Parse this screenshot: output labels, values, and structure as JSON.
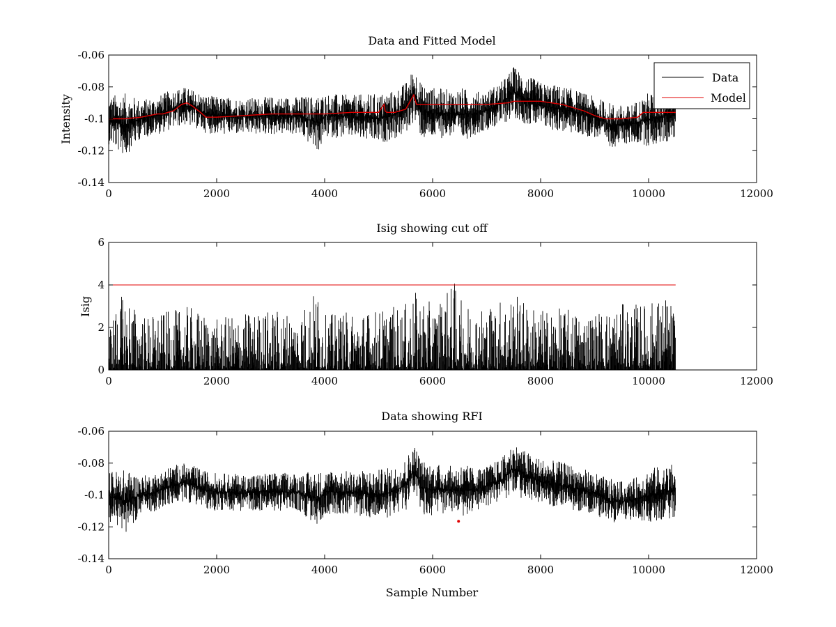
{
  "figure": {
    "background": "#ffffff"
  },
  "chart_data": [
    {
      "type": "line",
      "title": "Data and Fitted Model",
      "xlabel": "",
      "ylabel": "Intensity",
      "xlim": [
        0,
        12000
      ],
      "ylim": [
        -0.14,
        -0.06
      ],
      "y_reversed": true,
      "xticks": [
        0,
        2000,
        4000,
        6000,
        8000,
        10000,
        12000
      ],
      "xtick_labels": [
        "0",
        "2000",
        "4000",
        "6000",
        "8000",
        "10000",
        "12000"
      ],
      "yticks": [
        -0.06,
        -0.08,
        -0.1,
        -0.12,
        -0.14
      ],
      "ytick_labels": [
        "-0.06",
        "-0.08",
        "-0.1",
        "-0.12",
        "-0.14"
      ],
      "grid": false,
      "legend": {
        "placement": "top-right",
        "entries": [
          "Data",
          "Model"
        ]
      },
      "series": [
        {
          "name": "Data",
          "kind": "noise-envelope",
          "color": "#000000",
          "x": [
            0,
            300,
            600,
            900,
            1200,
            1400,
            1600,
            1800,
            2000,
            2500,
            3000,
            3500,
            3900,
            4000,
            4500,
            5000,
            5300,
            5500,
            5650,
            5700,
            5800,
            6000,
            6400,
            6500,
            6800,
            7000,
            7300,
            7500,
            7700,
            8000,
            8500,
            9000,
            9300,
            9600,
            9900,
            10000,
            10200,
            10500
          ],
          "upper": [
            -0.085,
            -0.084,
            -0.088,
            -0.086,
            -0.081,
            -0.08,
            -0.082,
            -0.085,
            -0.086,
            -0.087,
            -0.086,
            -0.086,
            -0.085,
            -0.084,
            -0.085,
            -0.084,
            -0.082,
            -0.077,
            -0.068,
            -0.07,
            -0.078,
            -0.08,
            -0.082,
            -0.08,
            -0.083,
            -0.082,
            -0.076,
            -0.067,
            -0.072,
            -0.077,
            -0.08,
            -0.086,
            -0.09,
            -0.092,
            -0.086,
            -0.083,
            -0.082,
            -0.08
          ],
          "lower": [
            -0.116,
            -0.124,
            -0.112,
            -0.11,
            -0.106,
            -0.104,
            -0.106,
            -0.109,
            -0.11,
            -0.11,
            -0.11,
            -0.11,
            -0.121,
            -0.112,
            -0.112,
            -0.116,
            -0.113,
            -0.11,
            -0.102,
            -0.105,
            -0.113,
            -0.113,
            -0.111,
            -0.115,
            -0.11,
            -0.107,
            -0.104,
            -0.099,
            -0.103,
            -0.106,
            -0.109,
            -0.112,
            -0.118,
            -0.116,
            -0.116,
            -0.118,
            -0.116,
            -0.114
          ]
        },
        {
          "name": "Model",
          "color": "#e00000",
          "x": [
            0,
            300,
            600,
            900,
            1000,
            1200,
            1350,
            1450,
            1550,
            1700,
            1800,
            2000,
            2500,
            3000,
            3500,
            4000,
            4500,
            5000,
            5100,
            5120,
            5150,
            5300,
            5500,
            5600,
            5650,
            5700,
            5750,
            5800,
            6000,
            6500,
            7000,
            7400,
            7500,
            7600,
            8000,
            8400,
            8800,
            9000,
            9200,
            9500,
            9800,
            9900,
            10000,
            10200,
            10500
          ],
          "values": [
            -0.1,
            -0.1,
            -0.099,
            -0.097,
            -0.097,
            -0.095,
            -0.091,
            -0.09,
            -0.092,
            -0.096,
            -0.099,
            -0.099,
            -0.098,
            -0.097,
            -0.097,
            -0.097,
            -0.096,
            -0.096,
            -0.091,
            -0.095,
            -0.096,
            -0.096,
            -0.094,
            -0.088,
            -0.085,
            -0.091,
            -0.091,
            -0.091,
            -0.091,
            -0.091,
            -0.091,
            -0.09,
            -0.089,
            -0.089,
            -0.089,
            -0.091,
            -0.095,
            -0.098,
            -0.1,
            -0.1,
            -0.099,
            -0.096,
            -0.096,
            -0.096,
            -0.096
          ]
        }
      ]
    },
    {
      "type": "line",
      "title": "Isig showing cut off",
      "xlabel": "",
      "ylabel": "Isig",
      "xlim": [
        0,
        12000
      ],
      "ylim": [
        0,
        6
      ],
      "y_reversed": false,
      "xticks": [
        0,
        2000,
        4000,
        6000,
        8000,
        10000,
        12000
      ],
      "xtick_labels": [
        "0",
        "2000",
        "4000",
        "6000",
        "8000",
        "10000",
        "12000"
      ],
      "yticks": [
        0,
        2,
        4,
        6
      ],
      "ytick_labels": [
        "0",
        "2",
        "4",
        "6"
      ],
      "grid": false,
      "series": [
        {
          "kind": "noise-envelope",
          "color": "#000000",
          "x": [
            0,
            300,
            600,
            1000,
            1500,
            2000,
            2500,
            3000,
            3500,
            3900,
            4000,
            4500,
            5000,
            5500,
            5700,
            6000,
            6450,
            6500,
            7000,
            7500,
            7700,
            8000,
            8500,
            9000,
            9500,
            10000,
            10300,
            10500
          ],
          "upper": [
            2.3,
            3.8,
            2.6,
            2.7,
            3.0,
            2.4,
            2.7,
            2.9,
            2.8,
            4.0,
            2.6,
            2.8,
            2.9,
            3.1,
            3.7,
            3.1,
            4.3,
            3.3,
            3.1,
            3.7,
            3.3,
            2.9,
            2.9,
            2.8,
            3.1,
            3.2,
            3.6,
            3.0
          ],
          "lower": [
            0,
            0,
            0,
            0,
            0,
            0,
            0,
            0,
            0,
            0,
            0,
            0,
            0,
            0,
            0,
            0,
            0,
            0,
            0,
            0,
            0,
            0,
            0,
            0,
            0,
            0,
            0,
            0
          ]
        },
        {
          "kind": "cutoff",
          "color": "#e00000",
          "x": [
            0,
            10500
          ],
          "values": [
            4,
            4
          ]
        }
      ]
    },
    {
      "type": "line",
      "title": "Data showing RFI",
      "xlabel": "Sample Number",
      "ylabel": "",
      "xlim": [
        0,
        12000
      ],
      "ylim": [
        -0.14,
        -0.06
      ],
      "y_reversed": true,
      "xticks": [
        0,
        2000,
        4000,
        6000,
        8000,
        10000,
        12000
      ],
      "xtick_labels": [
        "0",
        "2000",
        "4000",
        "6000",
        "8000",
        "10000",
        "12000"
      ],
      "yticks": [
        -0.06,
        -0.08,
        -0.1,
        -0.12,
        -0.14
      ],
      "ytick_labels": [
        "-0.06",
        "-0.08",
        "-0.1",
        "-0.12",
        "-0.14"
      ],
      "grid": false,
      "series": [
        {
          "kind": "noise-envelope",
          "color": "#000000",
          "x": [
            0,
            300,
            600,
            900,
            1200,
            1400,
            1600,
            1800,
            2000,
            2500,
            3000,
            3500,
            3900,
            4000,
            4500,
            5000,
            5300,
            5500,
            5650,
            5700,
            5800,
            6000,
            6400,
            6500,
            6800,
            7000,
            7300,
            7500,
            7700,
            8000,
            8500,
            9000,
            9300,
            9600,
            9900,
            10000,
            10200,
            10500
          ],
          "upper": [
            -0.085,
            -0.084,
            -0.088,
            -0.086,
            -0.081,
            -0.08,
            -0.082,
            -0.085,
            -0.086,
            -0.087,
            -0.086,
            -0.086,
            -0.085,
            -0.084,
            -0.085,
            -0.084,
            -0.082,
            -0.077,
            -0.068,
            -0.07,
            -0.078,
            -0.08,
            -0.082,
            -0.08,
            -0.083,
            -0.082,
            -0.076,
            -0.067,
            -0.072,
            -0.077,
            -0.08,
            -0.086,
            -0.09,
            -0.092,
            -0.086,
            -0.083,
            -0.082,
            -0.08
          ],
          "lower": [
            -0.116,
            -0.124,
            -0.112,
            -0.11,
            -0.106,
            -0.104,
            -0.106,
            -0.109,
            -0.11,
            -0.11,
            -0.11,
            -0.11,
            -0.121,
            -0.112,
            -0.112,
            -0.116,
            -0.113,
            -0.11,
            -0.102,
            -0.105,
            -0.113,
            -0.113,
            -0.111,
            -0.115,
            -0.11,
            -0.107,
            -0.104,
            -0.099,
            -0.103,
            -0.106,
            -0.109,
            -0.112,
            -0.118,
            -0.116,
            -0.116,
            -0.118,
            -0.116,
            -0.114
          ]
        },
        {
          "kind": "marker",
          "color": "#e00000",
          "x": [
            6480
          ],
          "values": [
            -0.1165
          ]
        }
      ]
    }
  ]
}
